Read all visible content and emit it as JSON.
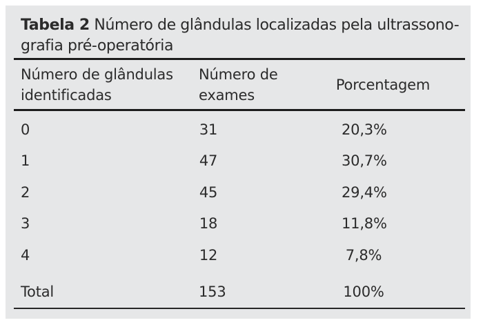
{
  "table": {
    "caption": {
      "label": "Tabela 2",
      "text_line1": " Número de glândulas localizadas pela ultrassono-",
      "text_line2": "grafia pré-operatória"
    },
    "columns": {
      "glands": "Número de glândulas\nidentificadas",
      "exams": "Número de\nexames",
      "pct": "Porcentagem"
    },
    "rows": [
      {
        "glands": "0",
        "exams": "31",
        "pct": "20,3%"
      },
      {
        "glands": "1",
        "exams": "47",
        "pct": "30,7%"
      },
      {
        "glands": "2",
        "exams": "45",
        "pct": "29,4%"
      },
      {
        "glands": "3",
        "exams": "18",
        "pct": "11,8%"
      },
      {
        "glands": "4",
        "exams": "12",
        "pct": "7,8%"
      }
    ],
    "total": {
      "label": "Total",
      "exams": "153",
      "pct": "100%"
    }
  },
  "colors": {
    "panel_bg": "#e6e7e8",
    "text": "#2b2b2b",
    "rule": "#1c1c1c"
  },
  "chart_data": {
    "type": "table",
    "title": "Tabela 2 Número de glândulas localizadas pela ultrassonografia pré-operatória",
    "columns": [
      "Número de glândulas identificadas",
      "Número de exames",
      "Porcentagem"
    ],
    "rows": [
      [
        "0",
        "31",
        "20,3%"
      ],
      [
        "1",
        "47",
        "30,7%"
      ],
      [
        "2",
        "45",
        "29,4%"
      ],
      [
        "3",
        "18",
        "11,8%"
      ],
      [
        "4",
        "12",
        "7,8%"
      ],
      [
        "Total",
        "153",
        "100%"
      ]
    ]
  }
}
